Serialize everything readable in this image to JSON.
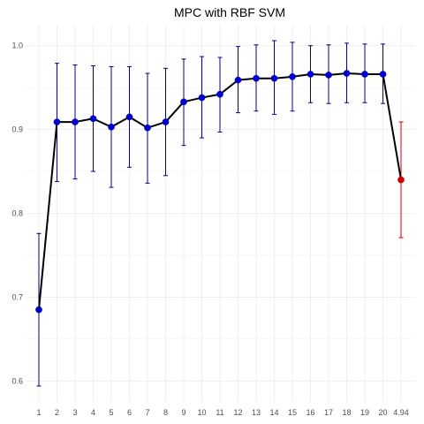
{
  "chart_data": {
    "type": "line",
    "title": "MPC with RBF SVM",
    "xlabel": "",
    "ylabel": "",
    "x_tick_labels": [
      "1",
      "2",
      "3",
      "4",
      "5",
      "6",
      "7",
      "8",
      "9",
      "10",
      "11",
      "12",
      "13",
      "14",
      "15",
      "16",
      "17",
      "18",
      "19",
      "20",
      "4.94"
    ],
    "ylim": [
      0.575,
      1.025
    ],
    "y_ticks": [
      0.6,
      0.7,
      0.8,
      0.9,
      1.0
    ],
    "y_tick_labels": [
      "0.6",
      "0.7",
      "0.8",
      "0.9",
      "1.0"
    ],
    "grid": true,
    "series": [
      {
        "x": [
          1,
          2,
          3,
          4,
          5,
          6,
          7,
          8,
          9,
          10,
          11,
          12,
          13,
          14,
          15,
          16,
          17,
          18,
          19,
          20
        ],
        "values": [
          0.685,
          0.909,
          0.909,
          0.913,
          0.903,
          0.915,
          0.902,
          0.909,
          0.933,
          0.938,
          0.942,
          0.959,
          0.961,
          0.961,
          0.963,
          0.966,
          0.965,
          0.967,
          0.966,
          0.966
        ],
        "lower": [
          0.594,
          0.838,
          0.841,
          0.85,
          0.831,
          0.855,
          0.836,
          0.845,
          0.881,
          0.89,
          0.897,
          0.92,
          0.922,
          0.918,
          0.922,
          0.932,
          0.931,
          0.932,
          0.932,
          0.931
        ],
        "upper": [
          0.776,
          0.979,
          0.977,
          0.976,
          0.975,
          0.975,
          0.967,
          0.973,
          0.984,
          0.987,
          0.986,
          0.999,
          1.001,
          1.006,
          1.004,
          1.0,
          1.001,
          1.003,
          1.002,
          1.002
        ],
        "color": "#0000cc",
        "errorbar_color": "#00008b"
      },
      {
        "x": [
          "4.94"
        ],
        "values": [
          0.84
        ],
        "lower": [
          0.771
        ],
        "upper": [
          0.909
        ],
        "color": "#cc0000",
        "errorbar_color": "#cc0000"
      }
    ],
    "connector_color": "#000000"
  }
}
